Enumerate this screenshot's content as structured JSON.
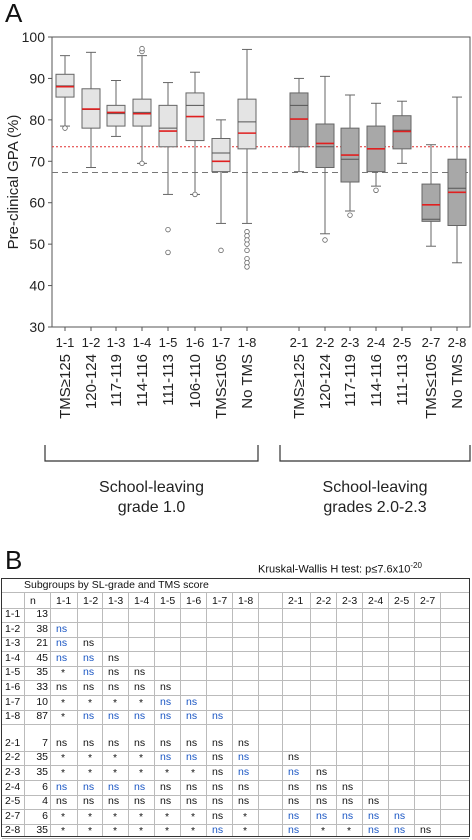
{
  "panel_a_label": "A",
  "panel_b_label": "B",
  "chart_data": {
    "type": "box",
    "ylabel": "Pre-clinical GPA (%)",
    "ylim": [
      30,
      100
    ],
    "yticks": [
      30,
      40,
      50,
      60,
      70,
      80,
      90,
      100
    ],
    "reference_lines": [
      {
        "value": 73.5,
        "style": "dotted",
        "color": "#e03030"
      },
      {
        "value": 67.3,
        "style": "dashed",
        "color": "#777777"
      }
    ],
    "groups": [
      {
        "label": "School-leaving grade 1.0",
        "fill": "#e4e4e4",
        "boxes": [
          {
            "code": "1-1",
            "label": "TMS≥125",
            "whislo": 78.5,
            "q1": 85.5,
            "med": 88.2,
            "q3": 91.0,
            "whishi": 95.5,
            "mean": 88.0,
            "outliers": [
              78.0
            ]
          },
          {
            "code": "1-2",
            "label": "120-124",
            "whislo": 68.5,
            "q1": 78.0,
            "med": 82.5,
            "q3": 87.5,
            "whishi": 96.3,
            "mean": 82.6,
            "outliers": []
          },
          {
            "code": "1-3",
            "label": "117-119",
            "whislo": 76.0,
            "q1": 78.5,
            "med": 81.5,
            "q3": 83.5,
            "whishi": 89.5,
            "mean": 81.8,
            "outliers": []
          },
          {
            "code": "1-4",
            "label": "114-116",
            "whislo": 69.5,
            "q1": 78.5,
            "med": 81.8,
            "q3": 85.0,
            "whishi": 95.5,
            "mean": 81.5,
            "outliers": [
              69.5,
              96.5,
              97.2
            ]
          },
          {
            "code": "1-5",
            "label": "111-113",
            "whislo": 62.0,
            "q1": 73.5,
            "med": 78.0,
            "q3": 83.5,
            "whishi": 89.0,
            "mean": 77.3,
            "outliers": [
              53.5,
              48.0
            ]
          },
          {
            "code": "1-6",
            "label": "106-110",
            "whislo": 62.0,
            "q1": 75.0,
            "med": 83.5,
            "q3": 86.5,
            "whishi": 91.5,
            "mean": 80.8,
            "outliers": [
              62.0
            ]
          },
          {
            "code": "1-7",
            "label": "TMS≤105",
            "whislo": 55.0,
            "q1": 67.5,
            "med": 72.0,
            "q3": 75.5,
            "whishi": 80.0,
            "mean": 70.0,
            "outliers": [
              48.5
            ]
          },
          {
            "code": "1-8",
            "label": "No TMS",
            "whislo": 55.0,
            "q1": 73.0,
            "med": 79.5,
            "q3": 85.0,
            "whishi": 97.0,
            "mean": 76.8,
            "outliers": [
              53.0,
              52.0,
              51.0,
              50.0,
              48.5,
              46.5,
              45.5,
              44.5
            ]
          }
        ]
      },
      {
        "label": "School-leaving grades 2.0-2.3",
        "fill": "#a8a8a8",
        "boxes": [
          {
            "code": "2-1",
            "label": "TMS≥125",
            "whislo": 67.5,
            "q1": 73.5,
            "med": 83.5,
            "q3": 86.5,
            "whishi": 90.0,
            "mean": 80.2,
            "outliers": []
          },
          {
            "code": "2-2",
            "label": "120-124",
            "whislo": 52.5,
            "q1": 68.5,
            "med": 73.5,
            "q3": 79.0,
            "whishi": 90.5,
            "mean": 74.3,
            "outliers": [
              51.0
            ]
          },
          {
            "code": "2-3",
            "label": "117-119",
            "whislo": 58.0,
            "q1": 65.0,
            "med": 70.5,
            "q3": 78.0,
            "whishi": 86.0,
            "mean": 71.5,
            "outliers": [
              57.0
            ]
          },
          {
            "code": "2-4",
            "label": "114-116",
            "whislo": 64.0,
            "q1": 67.5,
            "med": 73.0,
            "q3": 78.5,
            "whishi": 84.0,
            "mean": 73.0,
            "outliers": [
              63.0
            ]
          },
          {
            "code": "2-5",
            "label": "111-113",
            "whislo": 69.5,
            "q1": 73.0,
            "med": 77.5,
            "q3": 81.0,
            "whishi": 84.5,
            "mean": 77.2,
            "outliers": []
          },
          {
            "code": "2-7",
            "label": "TMS≤105",
            "whislo": 49.5,
            "q1": 55.5,
            "med": 56.0,
            "q3": 64.5,
            "whishi": 74.0,
            "mean": 59.5,
            "outliers": []
          },
          {
            "code": "2-8",
            "label": "No TMS",
            "whislo": 45.5,
            "q1": 54.5,
            "med": 63.5,
            "q3": 70.5,
            "whishi": 85.5,
            "mean": 62.5,
            "outliers": []
          }
        ]
      }
    ]
  },
  "panel_b": {
    "kw_prefix": "Kruskal-Wallis H test: p≤7.6x10",
    "kw_exponent": "-20",
    "table_title": "Subgroups by SL-grade and TMS score",
    "n_header": "n",
    "col_headers": [
      "1-1",
      "1-2",
      "1-3",
      "1-4",
      "1-5",
      "1-6",
      "1-7",
      "1-8",
      "2-1",
      "2-2",
      "2-3",
      "2-4",
      "2-5",
      "2-7"
    ],
    "rows": [
      {
        "code": "1-1",
        "n": "13",
        "cells": []
      },
      {
        "code": "1-2",
        "n": "38",
        "cells": [
          "ns*"
        ]
      },
      {
        "code": "1-3",
        "n": "21",
        "cells": [
          "ns*",
          "ns"
        ]
      },
      {
        "code": "1-4",
        "n": "45",
        "cells": [
          "ns*",
          "ns*",
          "ns"
        ]
      },
      {
        "code": "1-5",
        "n": "35",
        "cells": [
          "*",
          "ns*",
          "ns",
          "ns"
        ]
      },
      {
        "code": "1-6",
        "n": "33",
        "cells": [
          "ns",
          "ns",
          "ns",
          "ns",
          "ns"
        ]
      },
      {
        "code": "1-7",
        "n": "10",
        "cells": [
          "*",
          "*",
          "*",
          "*",
          "ns*",
          "ns*"
        ]
      },
      {
        "code": "1-8",
        "n": "87",
        "cells": [
          "*",
          "ns*",
          "ns*",
          "ns*",
          "ns*",
          "ns*",
          "ns*"
        ]
      },
      {
        "code": "2-1",
        "n": "7",
        "cells": [
          "ns",
          "ns",
          "ns",
          "ns",
          "ns",
          "ns",
          "ns",
          "ns"
        ]
      },
      {
        "code": "2-2",
        "n": "35",
        "cells": [
          "*",
          "*",
          "*",
          "*",
          "ns*",
          "ns*",
          "ns",
          "ns*",
          "ns"
        ]
      },
      {
        "code": "2-3",
        "n": "35",
        "cells": [
          "*",
          "*",
          "*",
          "*",
          "*",
          "*",
          "ns",
          "ns*",
          "ns*",
          "ns"
        ]
      },
      {
        "code": "2-4",
        "n": "6",
        "cells": [
          "ns*",
          "ns*",
          "ns*",
          "ns*",
          "ns",
          "ns",
          "ns",
          "ns",
          "ns",
          "ns",
          "ns"
        ]
      },
      {
        "code": "2-5",
        "n": "4",
        "cells": [
          "ns",
          "ns",
          "ns",
          "ns",
          "ns",
          "ns",
          "ns",
          "ns",
          "ns",
          "ns",
          "ns",
          "ns"
        ]
      },
      {
        "code": "2-7",
        "n": "6",
        "cells": [
          "*",
          "*",
          "*",
          "*",
          "*",
          "*",
          "ns",
          "*",
          "ns*",
          "ns*",
          "ns*",
          "ns*",
          "ns*"
        ]
      },
      {
        "code": "2-8",
        "n": "35",
        "cells": [
          "*",
          "*",
          "*",
          "*",
          "*",
          "*",
          "ns*",
          "*",
          "ns*",
          "*",
          "*",
          "ns*",
          "ns*",
          "ns"
        ]
      }
    ]
  }
}
